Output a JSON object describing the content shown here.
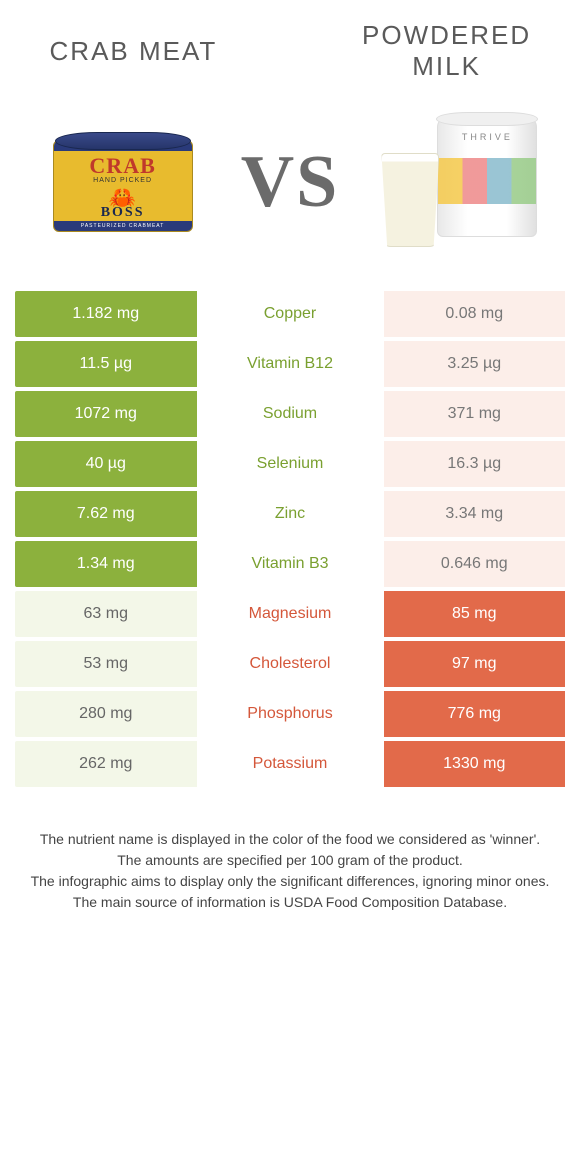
{
  "colors": {
    "green": "#8cb13d",
    "orange": "#e26a4a",
    "lt_green": "#f3f7e8",
    "lt_orange": "#fceee9",
    "txt_green": "#7aa030",
    "txt_orange": "#d4573a"
  },
  "header": {
    "left_title": "Crab meat",
    "right_title": "Powdered milk",
    "vs": "VS"
  },
  "crab_can": {
    "brand_top": "CRAB",
    "sub": "HAND PICKED",
    "brand_bottom": "BOSS",
    "bottom_band": "PASTEURIZED CRABMEAT"
  },
  "milk_can": {
    "label": "THRIVE"
  },
  "nutrients": [
    {
      "name": "Copper",
      "left": "1.182 mg",
      "right": "0.08 mg",
      "winner": "left"
    },
    {
      "name": "Vitamin B12",
      "left": "11.5 µg",
      "right": "3.25 µg",
      "winner": "left"
    },
    {
      "name": "Sodium",
      "left": "1072 mg",
      "right": "371 mg",
      "winner": "left"
    },
    {
      "name": "Selenium",
      "left": "40 µg",
      "right": "16.3 µg",
      "winner": "left"
    },
    {
      "name": "Zinc",
      "left": "7.62 mg",
      "right": "3.34 mg",
      "winner": "left"
    },
    {
      "name": "Vitamin B3",
      "left": "1.34 mg",
      "right": "0.646 mg",
      "winner": "left"
    },
    {
      "name": "Magnesium",
      "left": "63 mg",
      "right": "85 mg",
      "winner": "right"
    },
    {
      "name": "Cholesterol",
      "left": "53 mg",
      "right": "97 mg",
      "winner": "right"
    },
    {
      "name": "Phosphorus",
      "left": "280 mg",
      "right": "776 mg",
      "winner": "right"
    },
    {
      "name": "Potassium",
      "left": "262 mg",
      "right": "1330 mg",
      "winner": "right"
    }
  ],
  "footer": {
    "line1": "The nutrient name is displayed in the color of the food we considered as 'winner'.",
    "line2": "The amounts are specified per 100 gram of the product.",
    "line3": "The infographic aims to display only the significant differences, ignoring minor ones.",
    "line4": "The main source of information is USDA Food Composition Database."
  }
}
